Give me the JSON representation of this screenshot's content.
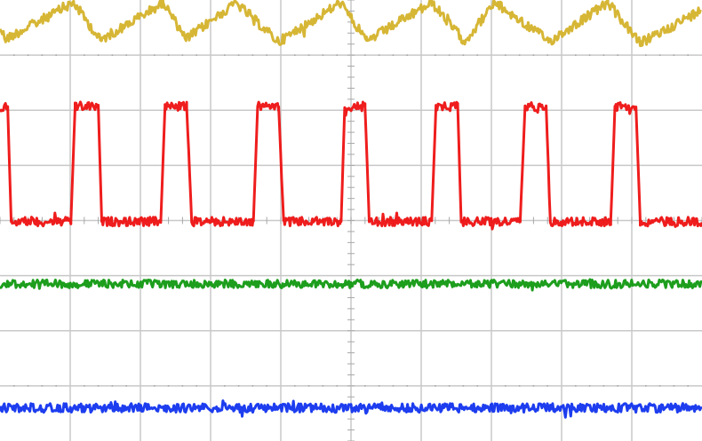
{
  "colors": {
    "background": "#ffffff",
    "grid": "#c8c8c8",
    "grid_dots": "#a8a8a8",
    "ch1": "#d4b22a",
    "ch2": "#ee1111",
    "ch3": "#119911",
    "ch4": "#1133ee"
  },
  "chart_data": {
    "type": "line",
    "grid": true,
    "legend": "none",
    "x_divisions": 10,
    "y_divisions": 8,
    "xlim": [
      0,
      10
    ],
    "ylim": [
      -4,
      4
    ],
    "series": [
      {
        "channel": 1,
        "color": "#d4b22a",
        "x": [
          0.0,
          0.08,
          1.05,
          1.43,
          2.33,
          2.65,
          3.36,
          3.97,
          4.85,
          5.22,
          6.15,
          6.62,
          7.05,
          7.83,
          8.66,
          9.12,
          9.98
        ],
        "y": [
          3.5,
          3.29,
          3.95,
          3.27,
          3.95,
          3.29,
          3.95,
          3.24,
          3.95,
          3.25,
          3.95,
          3.25,
          3.95,
          3.25,
          3.95,
          3.21,
          3.81
        ]
      },
      {
        "channel": 2,
        "color": "#ee1111",
        "x": [
          0.0,
          0.11,
          0.16,
          1.01,
          1.07,
          1.4,
          1.45,
          2.29,
          2.35,
          2.66,
          2.73,
          3.61,
          3.67,
          3.97,
          4.04,
          4.86,
          4.91,
          5.2,
          5.26,
          6.15,
          6.21,
          6.52,
          6.57,
          7.41,
          7.48,
          7.78,
          7.84,
          8.7,
          8.76,
          9.06,
          9.12,
          10.0
        ],
        "y": [
          2.05,
          2.05,
          -0.02,
          -0.02,
          2.07,
          2.07,
          -0.02,
          -0.02,
          2.07,
          2.07,
          -0.02,
          -0.02,
          2.07,
          2.07,
          -0.02,
          -0.02,
          2.07,
          2.07,
          -0.02,
          -0.02,
          2.07,
          2.07,
          -0.02,
          -0.02,
          2.07,
          2.07,
          -0.02,
          -0.02,
          2.07,
          2.07,
          -0.02,
          -0.02
        ]
      },
      {
        "channel": 3,
        "color": "#119911",
        "x": [
          0,
          10
        ],
        "y": [
          -1.15,
          -1.15
        ]
      },
      {
        "channel": 4,
        "color": "#1133ee",
        "x": [
          0,
          10
        ],
        "y": [
          -3.4,
          -3.4
        ]
      }
    ]
  }
}
